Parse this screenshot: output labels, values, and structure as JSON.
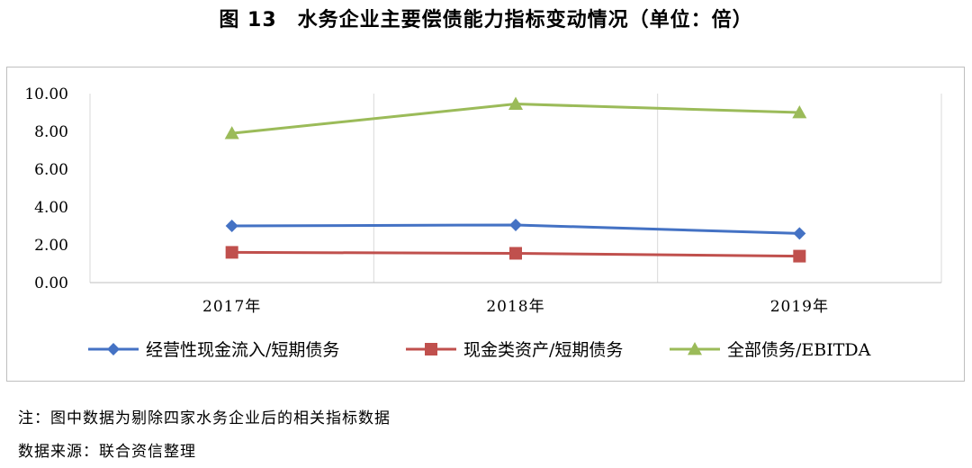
{
  "page": {
    "title": "图 13　水务企业主要偿债能力指标变动情况（单位：倍）",
    "note": "注：图中数据为剔除四家水务企业后的相关指标数据",
    "source": "数据来源：联合资信整理"
  },
  "chart_data": {
    "type": "line",
    "categories": [
      "2017年",
      "2018年",
      "2019年"
    ],
    "ylim": [
      0,
      10
    ],
    "yticks": [
      "0.00",
      "2.00",
      "4.00",
      "6.00",
      "8.00",
      "10.00"
    ],
    "grid": "vertical",
    "legend_position": "bottom",
    "series": [
      {
        "name": "经营性现金流入/短期债务",
        "values": [
          3.0,
          3.05,
          2.6
        ],
        "color": "#4472c4",
        "marker": "diamond"
      },
      {
        "name": "现金类资产/短期债务",
        "values": [
          1.6,
          1.55,
          1.4
        ],
        "color": "#c0504d",
        "marker": "square"
      },
      {
        "name": "全部债务/EBITDA",
        "values": [
          7.9,
          9.45,
          9.0
        ],
        "color": "#9bbb59",
        "marker": "triangle"
      }
    ]
  }
}
